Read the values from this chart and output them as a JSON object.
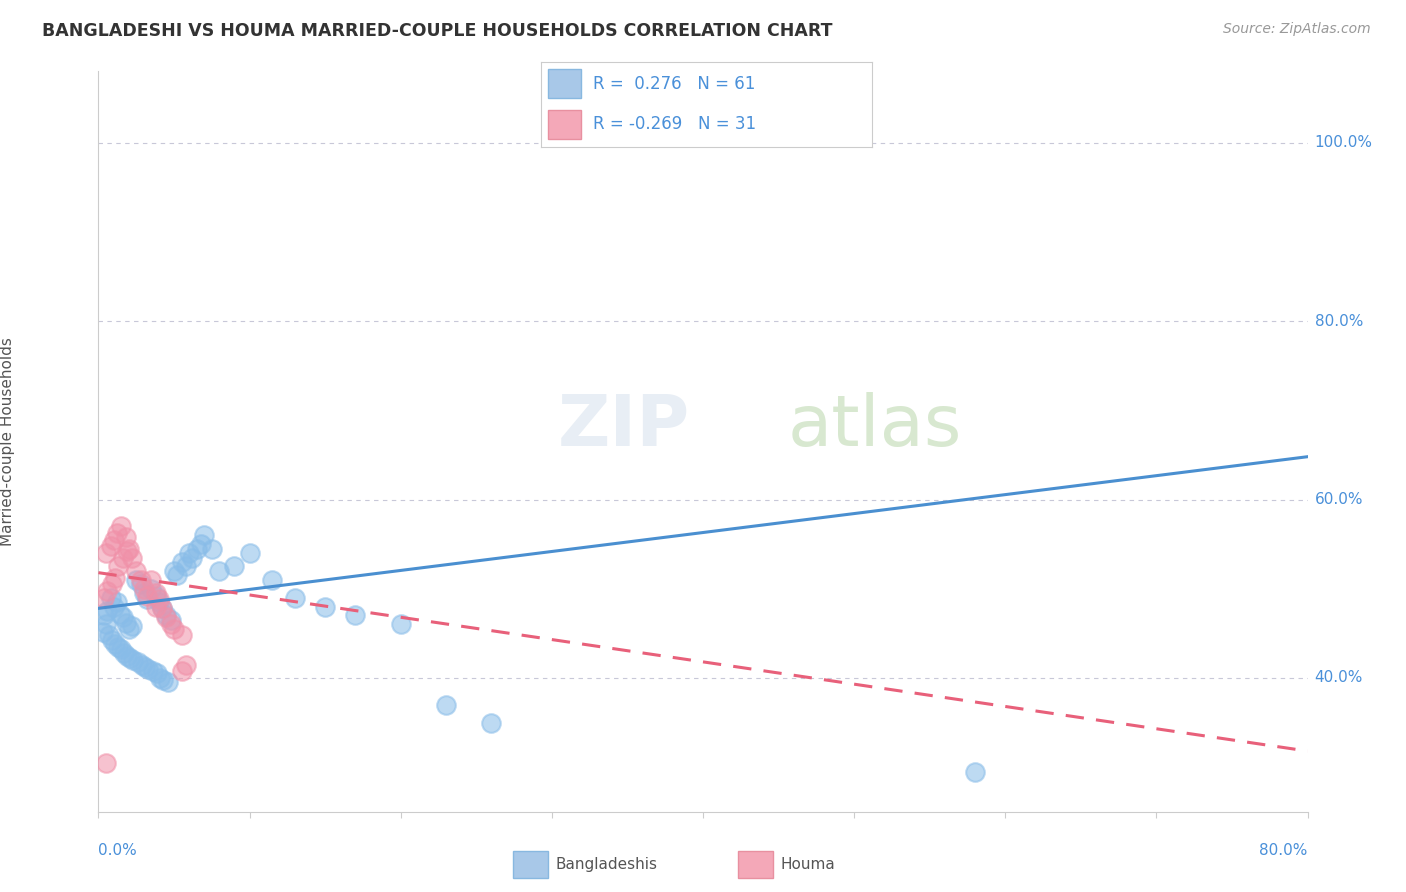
{
  "title": "BANGLADESHI VS HOUMA MARRIED-COUPLE HOUSEHOLDS CORRELATION CHART",
  "source": "Source: ZipAtlas.com",
  "ylabel": "Married-couple Households",
  "ytick_labels": [
    "40.0%",
    "60.0%",
    "80.0%",
    "100.0%"
  ],
  "ytick_vals": [
    0.4,
    0.6,
    0.8,
    1.0
  ],
  "xlim": [
    0.0,
    0.8
  ],
  "ylim": [
    0.25,
    1.08
  ],
  "legend_r1": "R =  0.276   N = 61",
  "legend_r2": "R = -0.269   N = 31",
  "legend_color1": "#a8c8e8",
  "legend_color2": "#f4a8b8",
  "legend_text_color": "#4a90d9",
  "watermark_zip": "ZIP",
  "watermark_atlas": "atlas",
  "scatter_blue_color": "#88bce8",
  "scatter_pink_color": "#f090a8",
  "line_blue_color": "#4a8fd0",
  "line_pink_color": "#e8607a",
  "grid_color": "#c8c8d8",
  "axis_label_color": "#4a90d9",
  "title_color": "#333333",
  "source_color": "#999999",
  "bg_color": "#ffffff",
  "blue_line_x": [
    0.0,
    0.8
  ],
  "blue_line_y": [
    0.478,
    0.648
  ],
  "pink_line_x": [
    0.0,
    0.8
  ],
  "pink_line_y": [
    0.518,
    0.318
  ],
  "bangladeshi_x": [
    0.004,
    0.006,
    0.008,
    0.01,
    0.012,
    0.014,
    0.016,
    0.018,
    0.02,
    0.022,
    0.025,
    0.028,
    0.03,
    0.032,
    0.035,
    0.038,
    0.04,
    0.042,
    0.045,
    0.048,
    0.05,
    0.052,
    0.055,
    0.058,
    0.06,
    0.062,
    0.065,
    0.068,
    0.07,
    0.075,
    0.003,
    0.005,
    0.007,
    0.009,
    0.011,
    0.013,
    0.015,
    0.017,
    0.019,
    0.021,
    0.023,
    0.026,
    0.029,
    0.031,
    0.033,
    0.036,
    0.039,
    0.041,
    0.043,
    0.046,
    0.08,
    0.09,
    0.1,
    0.115,
    0.13,
    0.15,
    0.17,
    0.2,
    0.23,
    0.26,
    0.58
  ],
  "bangladeshi_y": [
    0.47,
    0.475,
    0.49,
    0.48,
    0.485,
    0.472,
    0.468,
    0.462,
    0.455,
    0.458,
    0.51,
    0.505,
    0.495,
    0.488,
    0.5,
    0.492,
    0.485,
    0.478,
    0.47,
    0.465,
    0.52,
    0.515,
    0.53,
    0.525,
    0.54,
    0.535,
    0.545,
    0.55,
    0.56,
    0.545,
    0.452,
    0.46,
    0.448,
    0.442,
    0.438,
    0.435,
    0.432,
    0.428,
    0.425,
    0.422,
    0.42,
    0.418,
    0.415,
    0.412,
    0.41,
    0.408,
    0.405,
    0.4,
    0.398,
    0.395,
    0.52,
    0.525,
    0.54,
    0.51,
    0.49,
    0.48,
    0.47,
    0.46,
    0.37,
    0.35,
    0.295
  ],
  "houma_x": [
    0.005,
    0.008,
    0.01,
    0.012,
    0.015,
    0.018,
    0.02,
    0.022,
    0.025,
    0.028,
    0.03,
    0.032,
    0.035,
    0.038,
    0.04,
    0.042,
    0.045,
    0.048,
    0.05,
    0.055,
    0.004,
    0.006,
    0.009,
    0.011,
    0.013,
    0.016,
    0.019,
    0.038,
    0.055,
    0.058,
    0.005
  ],
  "houma_y": [
    0.54,
    0.548,
    0.555,
    0.562,
    0.57,
    0.558,
    0.545,
    0.535,
    0.52,
    0.51,
    0.5,
    0.492,
    0.51,
    0.495,
    0.488,
    0.478,
    0.468,
    0.46,
    0.455,
    0.448,
    0.49,
    0.498,
    0.505,
    0.512,
    0.525,
    0.535,
    0.542,
    0.48,
    0.408,
    0.415,
    0.305
  ]
}
